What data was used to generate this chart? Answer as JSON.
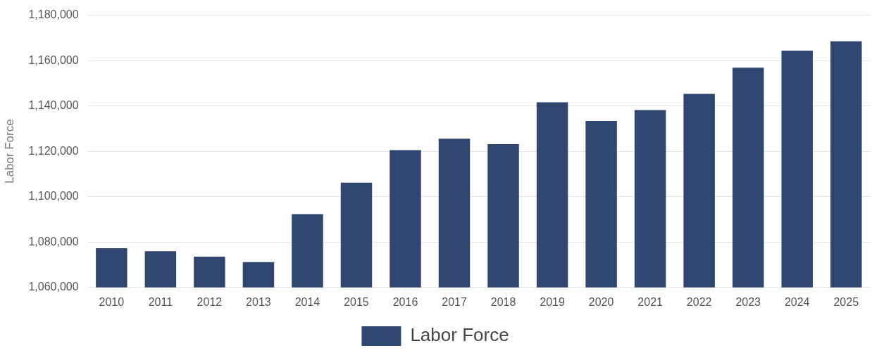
{
  "chart_data": {
    "type": "bar",
    "ylabel": "Labor Force",
    "categories": [
      "2010",
      "2011",
      "2012",
      "2013",
      "2014",
      "2015",
      "2016",
      "2017",
      "2018",
      "2019",
      "2020",
      "2021",
      "2022",
      "2023",
      "2024",
      "2025"
    ],
    "series": [
      {
        "name": "Labor Force",
        "color": "#2f4770",
        "values": [
          1077300,
          1076000,
          1073600,
          1071200,
          1092300,
          1106200,
          1120500,
          1125600,
          1123200,
          1141600,
          1133400,
          1138200,
          1145300,
          1156900,
          1164400,
          1168500
        ]
      }
    ],
    "ylim": [
      1060000,
      1180000
    ],
    "yticks": [
      {
        "value": 1060000,
        "label": "1,060,000"
      },
      {
        "value": 1080000,
        "label": "1,080,000"
      },
      {
        "value": 1100000,
        "label": "1,100,000"
      },
      {
        "value": 1120000,
        "label": "1,120,000"
      },
      {
        "value": 1140000,
        "label": "1,140,000"
      },
      {
        "value": 1160000,
        "label": "1,160,000"
      },
      {
        "value": 1180000,
        "label": "1,180,000"
      }
    ],
    "grid": "y",
    "legend": "bottom"
  }
}
